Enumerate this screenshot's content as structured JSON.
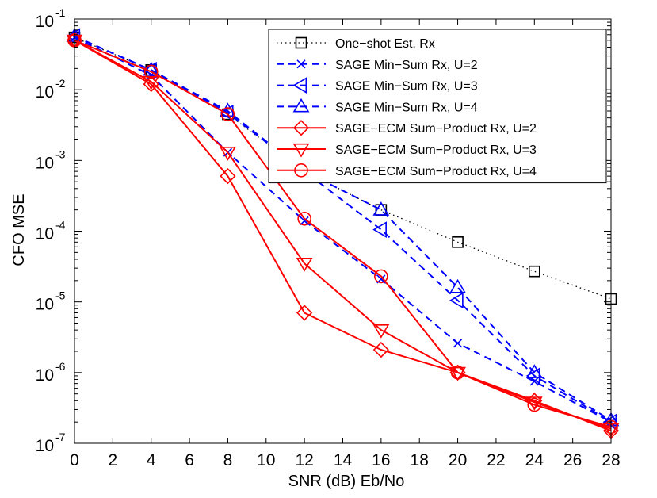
{
  "chart_data": {
    "type": "line",
    "title": "",
    "xlabel": "SNR (dB) Eb/No",
    "ylabel": "CFO MSE",
    "x_scale": "linear",
    "y_scale": "log",
    "xlim": [
      0,
      28
    ],
    "ylim": [
      1e-07,
      0.1
    ],
    "grid": false,
    "legend_position": "top-right",
    "x_ticks": [
      0,
      2,
      4,
      6,
      8,
      10,
      12,
      14,
      16,
      18,
      20,
      22,
      24,
      26,
      28
    ],
    "y_ticks": [
      {
        "base": "10",
        "exp": "-7",
        "value": 1e-07
      },
      {
        "base": "10",
        "exp": "-6",
        "value": 1e-06
      },
      {
        "base": "10",
        "exp": "-5",
        "value": 1e-05
      },
      {
        "base": "10",
        "exp": "-4",
        "value": 0.0001
      },
      {
        "base": "10",
        "exp": "-3",
        "value": 0.001
      },
      {
        "base": "10",
        "exp": "-2",
        "value": 0.01
      },
      {
        "base": "10",
        "exp": "-1",
        "value": 0.1
      }
    ],
    "series": [
      {
        "name": "One−shot Est. Rx",
        "color": "#000000",
        "line_style": "dotted",
        "marker": "square",
        "x": [
          0,
          4,
          8,
          12,
          16,
          20,
          24,
          28
        ],
        "y": [
          0.055,
          0.019,
          0.0045,
          0.0007,
          0.0002,
          7e-05,
          2.7e-05,
          1.1e-05
        ]
      },
      {
        "name": "SAGE Min−Sum Rx, U=2",
        "color": "#0000ff",
        "line_style": "dashed",
        "marker": "x",
        "x": [
          0,
          4,
          8,
          12,
          16,
          20,
          24,
          28
        ],
        "y": [
          0.055,
          0.016,
          0.0013,
          0.00014,
          2.1e-05,
          2.6e-06,
          7.5e-07,
          2e-07
        ]
      },
      {
        "name": "SAGE Min−Sum Rx, U=3",
        "color": "#0000ff",
        "line_style": "dashed",
        "marker": "triangle-left",
        "x": [
          0,
          4,
          8,
          12,
          16,
          20,
          24,
          28
        ],
        "y": [
          0.057,
          0.019,
          0.0047,
          0.0007,
          0.000105,
          1.05e-05,
          9e-07,
          2e-07
        ]
      },
      {
        "name": "SAGE Min−Sum Rx, U=4",
        "color": "#0000ff",
        "line_style": "dashed",
        "marker": "triangle-up",
        "x": [
          0,
          4,
          8,
          12,
          16,
          20,
          24,
          28
        ],
        "y": [
          0.057,
          0.019,
          0.005,
          0.0007,
          0.0002,
          1.6e-05,
          1e-06,
          2.1e-07
        ]
      },
      {
        "name": "SAGE−ECM Sum−Product Rx, U=2",
        "color": "#ff0000",
        "line_style": "solid",
        "marker": "diamond",
        "x": [
          0,
          4,
          8,
          12,
          16,
          20,
          24,
          28
        ],
        "y": [
          0.05,
          0.012,
          0.0006,
          7e-06,
          2.1e-06,
          1e-06,
          4e-07,
          1.5e-07
        ]
      },
      {
        "name": "SAGE−ECM Sum−Product Rx, U=3",
        "color": "#ff0000",
        "line_style": "solid",
        "marker": "triangle-down",
        "x": [
          0,
          4,
          8,
          12,
          16,
          20,
          24,
          28
        ],
        "y": [
          0.05,
          0.013,
          0.0013,
          3.5e-05,
          4e-06,
          1e-06,
          3.8e-07,
          1.6e-07
        ]
      },
      {
        "name": "SAGE−ECM Sum−Product Rx, U=4",
        "color": "#ff0000",
        "line_style": "solid",
        "marker": "circle",
        "x": [
          0,
          4,
          8,
          12,
          16,
          20,
          24,
          28
        ],
        "y": [
          0.05,
          0.018,
          0.0045,
          0.00015,
          2.3e-05,
          1e-06,
          3.5e-07,
          1.7e-07
        ]
      }
    ]
  }
}
